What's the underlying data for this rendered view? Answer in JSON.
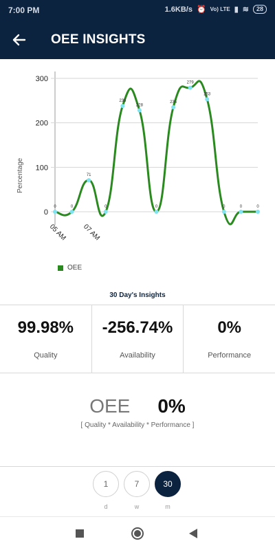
{
  "status_bar": {
    "time": "7:00 PM",
    "speed": "1.6KB/s",
    "network": "Vo) LTE",
    "battery": "28"
  },
  "app_bar": {
    "title": "OEE INSIGHTS"
  },
  "chart_data": {
    "type": "line",
    "ylabel": "Percentage",
    "y_ticks": [
      "0",
      "100",
      "200",
      "300"
    ],
    "x_tick_labels": [
      "05 AM",
      "07 AM"
    ],
    "ylim": [
      -30,
      300
    ],
    "grid": true,
    "series": [
      {
        "name": "OEE",
        "color": "#2a8a1f",
        "point_color": "#7fe3f0",
        "values": [
          0,
          0,
          71,
          0,
          238,
          228,
          0,
          235,
          279,
          253,
          0,
          0,
          0
        ],
        "labels": [
          "0",
          "0",
          "71",
          "0",
          "238",
          "228",
          "0",
          "235",
          "279",
          "253",
          "0",
          "0",
          "0"
        ]
      }
    ]
  },
  "legend": {
    "label": "OEE"
  },
  "insights_title": "30 Day's Insights",
  "metrics": [
    {
      "value": "99.98%",
      "label": "Quality"
    },
    {
      "value": "-256.74%",
      "label": "Availability"
    },
    {
      "value": "0%",
      "label": "Performance"
    }
  ],
  "oee": {
    "label": "OEE",
    "value": "0%",
    "formula": "[ Quality * Availability * Performance ]"
  },
  "range": {
    "buttons": [
      "1",
      "7",
      "30"
    ],
    "subs": [
      "d",
      "w",
      "m"
    ],
    "selected": "30"
  }
}
